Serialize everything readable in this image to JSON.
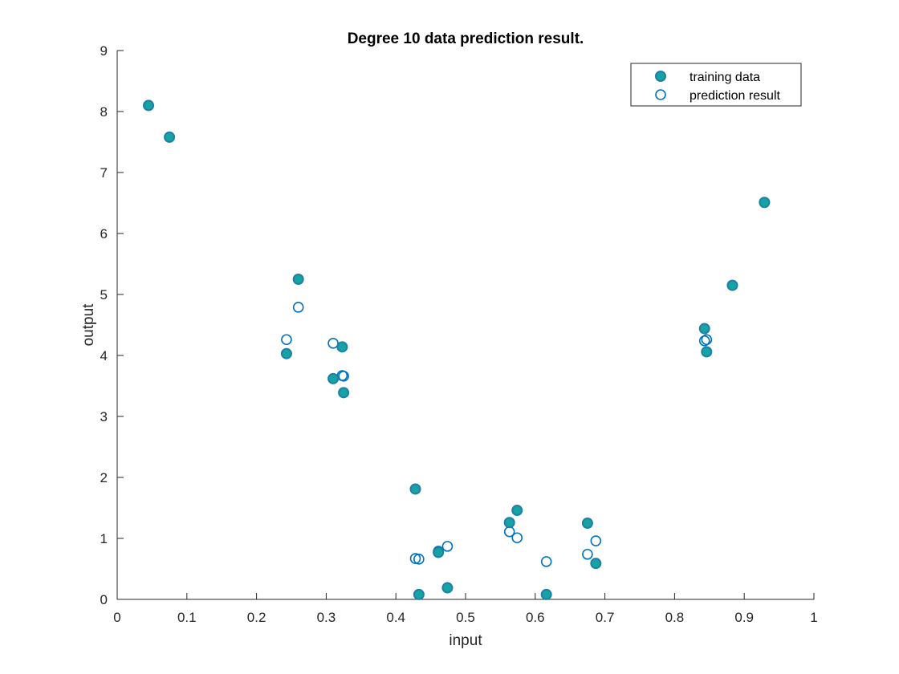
{
  "chart_data": {
    "type": "scatter",
    "title": "Degree 10 data prediction result.",
    "xlabel": "input",
    "ylabel": "output",
    "xlim": [
      0,
      1
    ],
    "ylim": [
      0,
      9
    ],
    "xticks": [
      "0",
      "0.1",
      "0.2",
      "0.3",
      "0.4",
      "0.5",
      "0.6",
      "0.7",
      "0.8",
      "0.9",
      "1"
    ],
    "yticks": [
      "0",
      "1",
      "2",
      "3",
      "4",
      "5",
      "6",
      "7",
      "8",
      "9"
    ],
    "grid": false,
    "legend_position": "top-right",
    "colors": {
      "training_fill": "#16a3a3",
      "training_edge": "#1f7fa8",
      "prediction_edge": "#0072bd",
      "axis": "#262626"
    },
    "series": [
      {
        "name": "training data",
        "marker": "filled-circle",
        "x": [
          0.045,
          0.075,
          0.243,
          0.26,
          0.31,
          0.323,
          0.325,
          0.428,
          0.433,
          0.461,
          0.474,
          0.563,
          0.574,
          0.616,
          0.675,
          0.687,
          0.843,
          0.846,
          0.883,
          0.929
        ],
        "y": [
          8.1,
          7.58,
          4.03,
          5.25,
          3.62,
          4.14,
          3.39,
          1.81,
          0.08,
          0.77,
          0.19,
          1.26,
          1.46,
          0.08,
          1.25,
          0.59,
          4.44,
          4.06,
          5.15,
          6.51
        ]
      },
      {
        "name": "prediction result",
        "marker": "open-circle",
        "x": [
          0.045,
          0.075,
          0.243,
          0.26,
          0.31,
          0.323,
          0.325,
          0.428,
          0.433,
          0.461,
          0.474,
          0.563,
          0.574,
          0.616,
          0.675,
          0.687,
          0.843,
          0.846,
          0.883,
          0.929
        ],
        "y": [
          8.1,
          7.58,
          4.26,
          4.79,
          4.2,
          3.67,
          3.66,
          0.67,
          0.66,
          0.79,
          0.87,
          1.11,
          1.01,
          0.62,
          0.74,
          0.96,
          4.24,
          4.26,
          5.15,
          6.51
        ]
      }
    ]
  }
}
